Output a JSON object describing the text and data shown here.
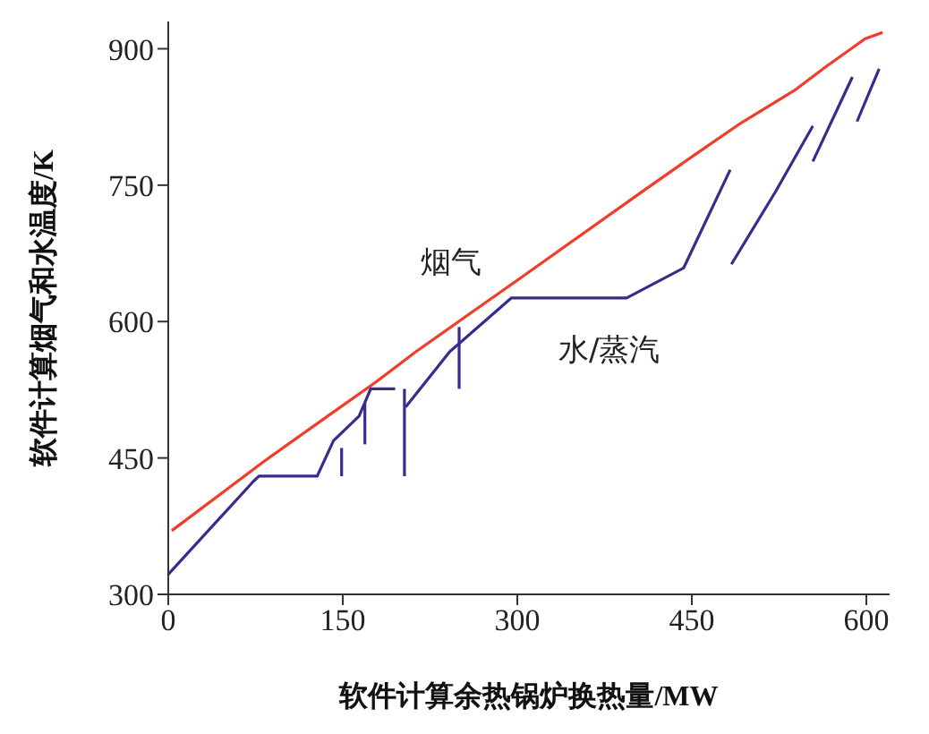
{
  "chart_data": {
    "type": "line",
    "xlabel": "软件计算余热锅炉换热量/MW",
    "ylabel": "软件计算烟气和水温度/K",
    "xlim": [
      0,
      620
    ],
    "ylim": [
      300,
      930
    ],
    "xticks": [
      0,
      150,
      300,
      450,
      600
    ],
    "yticks": [
      300,
      450,
      600,
      750,
      900
    ],
    "series": [
      {
        "name": "烟气",
        "color": "#f03c28",
        "x": [
          3,
          82,
          137,
          178,
          213,
          264,
          305,
          413,
          452,
          493,
          538,
          565,
          599,
          614
        ],
        "values": [
          370,
          446,
          496,
          533,
          567,
          613,
          650,
          748,
          783,
          819,
          854,
          880,
          911,
          918
        ]
      },
      {
        "name": "水/蒸汽",
        "color": "#3a2a8c",
        "x": [
          204,
          242,
          295,
          394,
          443,
          483
        ],
        "values": [
          506,
          567,
          626,
          626,
          659,
          767
        ]
      },
      {
        "color": "#3a2a8c",
        "x": [
          0,
          73,
          78,
          123,
          128,
          142,
          164,
          174,
          195
        ],
        "values": [
          322,
          424,
          430,
          430,
          430,
          469,
          496,
          526,
          526
        ]
      },
      {
        "color": "#3a2a8c",
        "x": [
          149,
          149
        ],
        "values": [
          430,
          461
        ]
      },
      {
        "color": "#3a2a8c",
        "x": [
          169,
          169
        ],
        "values": [
          465,
          511
        ]
      },
      {
        "color": "#3a2a8c",
        "x": [
          203,
          203
        ],
        "values": [
          430,
          526
        ]
      },
      {
        "color": "#3a2a8c",
        "x": [
          250,
          250
        ],
        "values": [
          526,
          594
        ]
      },
      {
        "color": "#3a2a8c",
        "x": [
          484,
          522,
          554
        ],
        "values": [
          663,
          743,
          815
        ]
      },
      {
        "color": "#3a2a8c",
        "x": [
          554,
          588
        ],
        "values": [
          776,
          869
        ]
      },
      {
        "color": "#3a2a8c",
        "x": [
          592,
          611
        ],
        "values": [
          820,
          878
        ]
      }
    ]
  }
}
